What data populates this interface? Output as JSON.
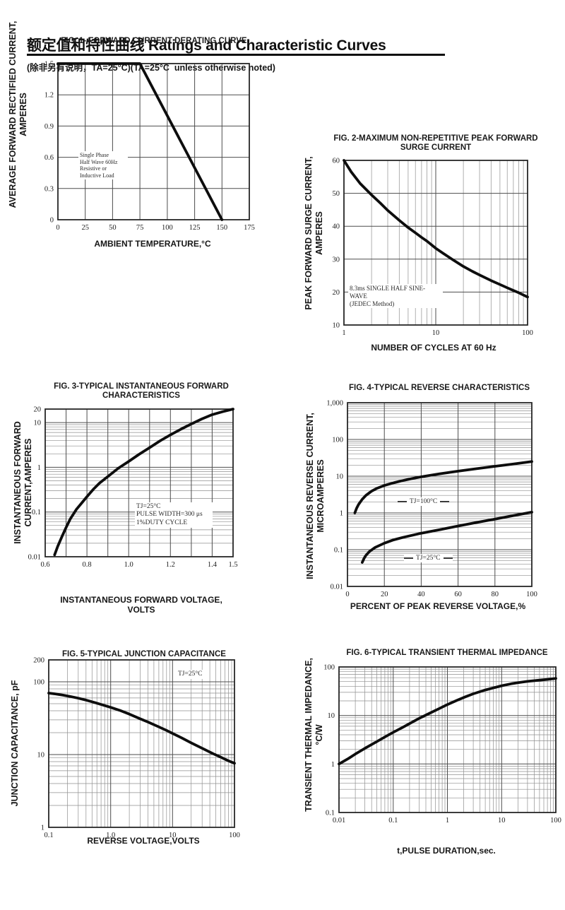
{
  "header": {
    "title": "额定值和特性曲线 Ratings and Characteristic Curves",
    "subtitle": "(除非另有说明，TA=25°C)(TA=25°C  unless otherwise noted)"
  },
  "chart_data": [
    {
      "id": "fig1",
      "type": "line",
      "title": "FIG. 1- FORWARD CURRENT DERATING CURVE",
      "xlabel": "AMBIENT TEMPERATURE,°C",
      "ylabel": "AVERAGE FORWARD RECTIFIED CURRENT,\nAMPERES",
      "x_scale": "linear",
      "y_scale": "linear",
      "xlim": [
        0,
        175
      ],
      "ylim": [
        0,
        1.5
      ],
      "x_grid": [
        0,
        25,
        50,
        75,
        100,
        125,
        150,
        175
      ],
      "y_grid": [
        0,
        0.3,
        0.6,
        0.9,
        1.2,
        1.5
      ],
      "x_ticks": [
        0,
        25,
        50,
        75,
        100,
        125,
        150,
        175
      ],
      "x_tick_labels": [
        "0",
        "25",
        "50",
        "75",
        "100",
        "125",
        "150",
        "175"
      ],
      "y_ticks": [
        0,
        0.3,
        0.6,
        0.9,
        1.2,
        1.5
      ],
      "y_tick_labels": [
        "0",
        "0.3",
        "0.6",
        "0.9",
        "1.2",
        "1.5"
      ],
      "grid": true,
      "legend": "none",
      "series": [
        {
          "name": "derating-curve",
          "points": [
            [
              0,
              1.5
            ],
            [
              75,
              1.5
            ],
            [
              150,
              0
            ]
          ]
        }
      ],
      "annotations": [
        {
          "text": "Single Phase\nHalf Wave 60Hz\nResistive or\nInductive Load"
        }
      ]
    },
    {
      "id": "fig2",
      "type": "line",
      "title": "FIG. 2-MAXIMUM NON-REPETITIVE PEAK FORWARD\nSURGE CURRENT",
      "xlabel": "NUMBER OF CYCLES AT 60 Hz",
      "ylabel": "PEAK FORWARD SURGE CURRENT,\nAMPERES",
      "x_scale": "log",
      "y_scale": "linear",
      "xlim": [
        1,
        100
      ],
      "ylim": [
        10,
        60
      ],
      "y_grid": [
        10,
        20,
        30,
        40,
        50,
        60
      ],
      "x_ticks": [
        1,
        10,
        100
      ],
      "x_tick_labels": [
        "1",
        "10",
        "100"
      ],
      "y_ticks": [
        10,
        20,
        30,
        40,
        50,
        60
      ],
      "y_tick_labels": [
        "10",
        "20",
        "30",
        "40",
        "50",
        "60"
      ],
      "grid": true,
      "legend": "none",
      "series": [
        {
          "name": "surge-current",
          "points": [
            [
              1,
              60
            ],
            [
              1.2,
              56.5
            ],
            [
              1.5,
              53
            ],
            [
              2,
              49.5
            ],
            [
              2.5,
              47
            ],
            [
              3,
              44.8
            ],
            [
              4,
              41.8
            ],
            [
              5,
              39.6
            ],
            [
              6,
              38
            ],
            [
              7,
              36.6
            ],
            [
              8,
              35.5
            ],
            [
              10,
              33.3
            ],
            [
              12,
              31.8
            ],
            [
              15,
              30
            ],
            [
              20,
              27.8
            ],
            [
              25,
              26.3
            ],
            [
              30,
              25.2
            ],
            [
              40,
              23.5
            ],
            [
              50,
              22.3
            ],
            [
              60,
              21.3
            ],
            [
              70,
              20.5
            ],
            [
              80,
              19.8
            ],
            [
              90,
              19.1
            ],
            [
              100,
              18.5
            ]
          ]
        }
      ],
      "annotations": [
        {
          "text": "8.3ms SINGLE HALF SINE-WAVE\n(JEDEC Method)"
        }
      ]
    },
    {
      "id": "fig3",
      "type": "line",
      "title": "FIG. 3-TYPICAL INSTANTANEOUS FORWARD\nCHARACTERISTICS",
      "xlabel": "INSTANTANEOUS FORWARD VOLTAGE,\nVOLTS",
      "ylabel": "INSTANTANEOUS FORWARD\nCURRENT,AMPERES",
      "x_scale": "linear",
      "y_scale": "log",
      "xlim": [
        0.6,
        1.5
      ],
      "ylim": [
        0.01,
        20
      ],
      "x_grid": [
        0.6,
        0.7,
        0.8,
        0.9,
        1.0,
        1.1,
        1.2,
        1.3,
        1.4,
        1.5
      ],
      "x_ticks": [
        0.6,
        0.8,
        1.0,
        1.2,
        1.4,
        1.5
      ],
      "x_tick_labels": [
        "0.6",
        "0.8",
        "1.0",
        "1.2",
        "1.4",
        "1.5"
      ],
      "y_ticks": [
        0.01,
        0.1,
        1,
        10,
        20
      ],
      "y_tick_labels": [
        "0.01",
        "0.1",
        "1",
        "10",
        "20"
      ],
      "grid": true,
      "legend": "none",
      "series": [
        {
          "name": "forward-characteristic",
          "points": [
            [
              0.645,
              0.011
            ],
            [
              0.66,
              0.017
            ],
            [
              0.68,
              0.028
            ],
            [
              0.7,
              0.045
            ],
            [
              0.72,
              0.07
            ],
            [
              0.75,
              0.115
            ],
            [
              0.78,
              0.17
            ],
            [
              0.8,
              0.22
            ],
            [
              0.83,
              0.32
            ],
            [
              0.86,
              0.44
            ],
            [
              0.9,
              0.62
            ],
            [
              0.95,
              0.95
            ],
            [
              1.0,
              1.35
            ],
            [
              1.05,
              1.95
            ],
            [
              1.1,
              2.75
            ],
            [
              1.15,
              3.9
            ],
            [
              1.2,
              5.3
            ],
            [
              1.25,
              7.1
            ],
            [
              1.3,
              9.3
            ],
            [
              1.35,
              12
            ],
            [
              1.4,
              15
            ],
            [
              1.45,
              17.5
            ],
            [
              1.5,
              20
            ]
          ]
        }
      ],
      "annotations": [
        {
          "text": "TJ=25°C\nPULSE WIDTH=300 μs\n1%DUTY CYCLE"
        }
      ]
    },
    {
      "id": "fig4",
      "type": "line",
      "title": "FIG. 4-TYPICAL REVERSE CHARACTERISTICS",
      "xlabel": "PERCENT OF PEAK REVERSE VOLTAGE,%",
      "ylabel": "INSTANTANEOUS REVERSE CURRENT,\nMICROAMPERES",
      "x_scale": "linear",
      "y_scale": "log",
      "xlim": [
        0,
        100
      ],
      "ylim": [
        0.01,
        1000
      ],
      "x_grid": [
        0,
        20,
        40,
        60,
        80,
        100
      ],
      "x_ticks": [
        0,
        20,
        40,
        60,
        80,
        100
      ],
      "x_tick_labels": [
        "0",
        "20",
        "40",
        "60",
        "80",
        "100"
      ],
      "y_ticks": [
        0.01,
        0.1,
        1,
        10,
        100,
        1000
      ],
      "y_tick_labels": [
        "0.01",
        "0.1",
        "1",
        "10",
        "100",
        "1,000"
      ],
      "grid": true,
      "legend": "inline-labels",
      "series": [
        {
          "name": "TJ=100°C",
          "points": [
            [
              4,
              1
            ],
            [
              5,
              1.35
            ],
            [
              6,
              1.7
            ],
            [
              8,
              2.35
            ],
            [
              10,
              3
            ],
            [
              13,
              3.9
            ],
            [
              16,
              4.7
            ],
            [
              20,
              5.6
            ],
            [
              25,
              6.6
            ],
            [
              30,
              7.6
            ],
            [
              35,
              8.6
            ],
            [
              40,
              9.6
            ],
            [
              50,
              11.6
            ],
            [
              60,
              13.7
            ],
            [
              70,
              16
            ],
            [
              80,
              18.6
            ],
            [
              90,
              21.5
            ],
            [
              100,
              25
            ]
          ]
        },
        {
          "name": "TJ=25°C",
          "points": [
            [
              8,
              0.045
            ],
            [
              9,
              0.058
            ],
            [
              10,
              0.07
            ],
            [
              12,
              0.09
            ],
            [
              15,
              0.115
            ],
            [
              20,
              0.15
            ],
            [
              25,
              0.185
            ],
            [
              30,
              0.215
            ],
            [
              40,
              0.28
            ],
            [
              50,
              0.35
            ],
            [
              60,
              0.44
            ],
            [
              70,
              0.55
            ],
            [
              80,
              0.68
            ],
            [
              90,
              0.85
            ],
            [
              100,
              1.05
            ]
          ]
        }
      ],
      "annotations": [
        {
          "text": "TJ=100°C",
          "dashes": true
        },
        {
          "text": "TJ=25°C",
          "dashes": true
        }
      ]
    },
    {
      "id": "fig5",
      "type": "line",
      "title": "FIG. 5-TYPICAL JUNCTION CAPACITANCE",
      "xlabel": "REVERSE VOLTAGE,VOLTS",
      "ylabel": "JUNCTION CAPACITANCE, pF",
      "x_scale": "log",
      "y_scale": "log",
      "xlim": [
        0.1,
        100
      ],
      "ylim": [
        1,
        200
      ],
      "x_ticks": [
        0.1,
        1,
        10,
        100
      ],
      "x_tick_labels": [
        "0.1",
        "1.0",
        "10",
        "100"
      ],
      "y_ticks": [
        1,
        10,
        100,
        200
      ],
      "y_tick_labels": [
        "1",
        "10",
        "100",
        "200"
      ],
      "grid": true,
      "legend": "none",
      "series": [
        {
          "name": "junction-capacitance",
          "points": [
            [
              0.1,
              70
            ],
            [
              0.13,
              68
            ],
            [
              0.17,
              65.5
            ],
            [
              0.22,
              63
            ],
            [
              0.3,
              59.5
            ],
            [
              0.4,
              56
            ],
            [
              0.55,
              52
            ],
            [
              0.7,
              48.8
            ],
            [
              1,
              44.5
            ],
            [
              1.4,
              40.5
            ],
            [
              2,
              36
            ],
            [
              3,
              31
            ],
            [
              4,
              28
            ],
            [
              6,
              24
            ],
            [
              8,
              21.5
            ],
            [
              10,
              19.5
            ],
            [
              14,
              17
            ],
            [
              20,
              14.5
            ],
            [
              30,
              12.2
            ],
            [
              45,
              10.3
            ],
            [
              60,
              9.2
            ],
            [
              80,
              8.2
            ],
            [
              100,
              7.6
            ]
          ]
        }
      ],
      "annotations": [
        {
          "text": "TJ=25°C"
        }
      ]
    },
    {
      "id": "fig6",
      "type": "line",
      "title": "FIG. 6-TYPICAL TRANSIENT THERMAL IMPEDANCE",
      "xlabel": "t,PULSE DURATION,sec.",
      "ylabel": "TRANSIENT THERMAL IMPEDANCE,\n°C/W",
      "x_scale": "log",
      "y_scale": "log",
      "xlim": [
        0.01,
        100
      ],
      "ylim": [
        0.1,
        100
      ],
      "x_ticks": [
        0.01,
        0.1,
        1,
        10,
        100
      ],
      "x_tick_labels": [
        "0.01",
        "0.1",
        "1",
        "10",
        "100"
      ],
      "y_ticks": [
        0.1,
        1,
        10,
        100
      ],
      "y_tick_labels": [
        "0.1",
        "1",
        "10",
        "100"
      ],
      "grid": true,
      "legend": "none",
      "series": [
        {
          "name": "thermal-impedance",
          "points": [
            [
              0.01,
              1
            ],
            [
              0.015,
              1.3
            ],
            [
              0.02,
              1.6
            ],
            [
              0.03,
              2.1
            ],
            [
              0.05,
              2.9
            ],
            [
              0.07,
              3.6
            ],
            [
              0.1,
              4.5
            ],
            [
              0.15,
              5.7
            ],
            [
              0.2,
              6.8
            ],
            [
              0.3,
              8.7
            ],
            [
              0.5,
              11.5
            ],
            [
              0.7,
              13.8
            ],
            [
              1,
              16.8
            ],
            [
              1.5,
              20.5
            ],
            [
              2,
              23.5
            ],
            [
              3,
              28
            ],
            [
              5,
              33.5
            ],
            [
              7,
              37
            ],
            [
              10,
              41
            ],
            [
              15,
              45
            ],
            [
              20,
              47.5
            ],
            [
              30,
              50.5
            ],
            [
              50,
              53.5
            ],
            [
              70,
              55.5
            ],
            [
              100,
              58
            ]
          ]
        }
      ],
      "annotations": []
    }
  ]
}
